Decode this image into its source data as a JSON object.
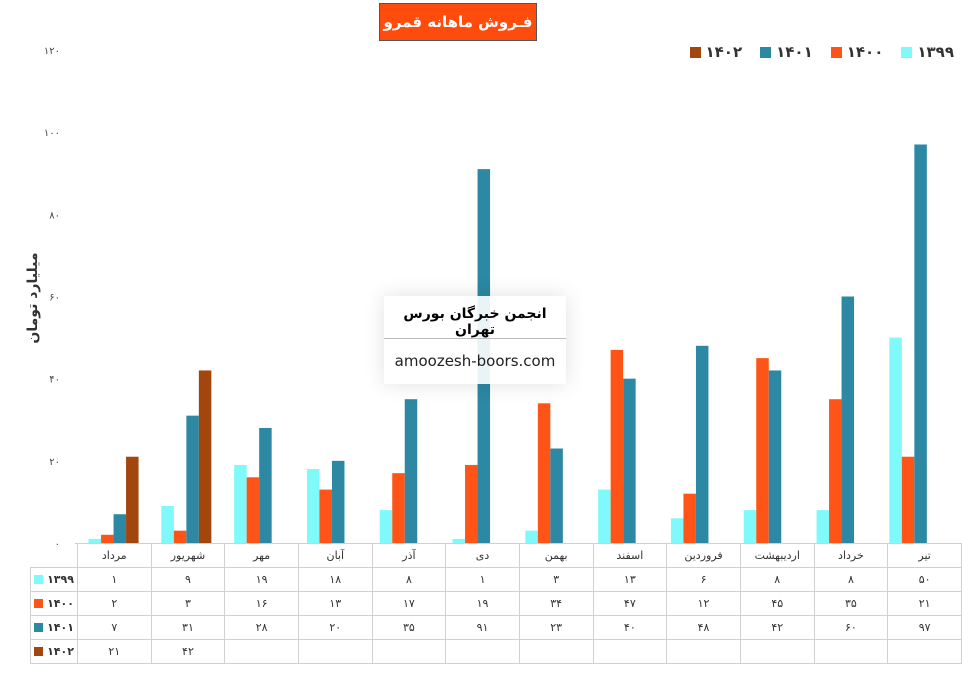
{
  "chart_data": {
    "type": "bar",
    "title": "فـروش ماهانه قمرو",
    "ylabel": "میلیارد تومان",
    "ylim": [
      0,
      120
    ],
    "yticks": [
      "۰",
      "۲۰",
      "۴۰",
      "۶۰",
      "۸۰",
      "۱۰۰",
      "۱۲۰"
    ],
    "ytick_values": [
      0,
      20,
      40,
      60,
      80,
      100,
      120
    ],
    "legend_position": "top-right",
    "grid": false,
    "categories": [
      "تیر",
      "خرداد",
      "اردیبهشت",
      "فروردین",
      "اسفند",
      "بهمن",
      "دی",
      "آذر",
      "آبان",
      "مهر",
      "شهریور",
      "مرداد"
    ],
    "series": [
      {
        "name": "۱۳۹۹",
        "color": "#7ff9f9",
        "values": [
          50,
          8,
          8,
          6,
          13,
          3,
          1,
          8,
          18,
          19,
          9,
          1
        ],
        "labels": [
          "۵۰",
          "۸",
          "۸",
          "۶",
          "۱۳",
          "۳",
          "۱",
          "۸",
          "۱۸",
          "۱۹",
          "۹",
          "۱"
        ]
      },
      {
        "name": "۱۴۰۰",
        "color": "#ff5417",
        "values": [
          21,
          35,
          45,
          12,
          47,
          34,
          19,
          17,
          13,
          16,
          3,
          2
        ],
        "labels": [
          "۲۱",
          "۳۵",
          "۴۵",
          "۱۲",
          "۴۷",
          "۳۴",
          "۱۹",
          "۱۷",
          "۱۳",
          "۱۶",
          "۳",
          "۲"
        ]
      },
      {
        "name": "۱۴۰۱",
        "color": "#2c88a3",
        "values": [
          97,
          60,
          42,
          48,
          40,
          23,
          91,
          35,
          20,
          28,
          31,
          7
        ],
        "labels": [
          "۹۷",
          "۶۰",
          "۴۲",
          "۴۸",
          "۴۰",
          "۲۳",
          "۹۱",
          "۳۵",
          "۲۰",
          "۲۸",
          "۳۱",
          "۷"
        ]
      },
      {
        "name": "۱۴۰۲",
        "color": "#a2460e",
        "values": [
          null,
          null,
          null,
          null,
          null,
          null,
          null,
          null,
          null,
          null,
          42,
          21
        ],
        "labels": [
          "",
          "",
          "",
          "",
          "",
          "",
          "",
          "",
          "",
          "",
          "۴۲",
          "۲۱"
        ]
      }
    ]
  },
  "watermark": {
    "title": "انجمن خبرگان بورس تهران",
    "url": "amoozesh-boors.com"
  }
}
